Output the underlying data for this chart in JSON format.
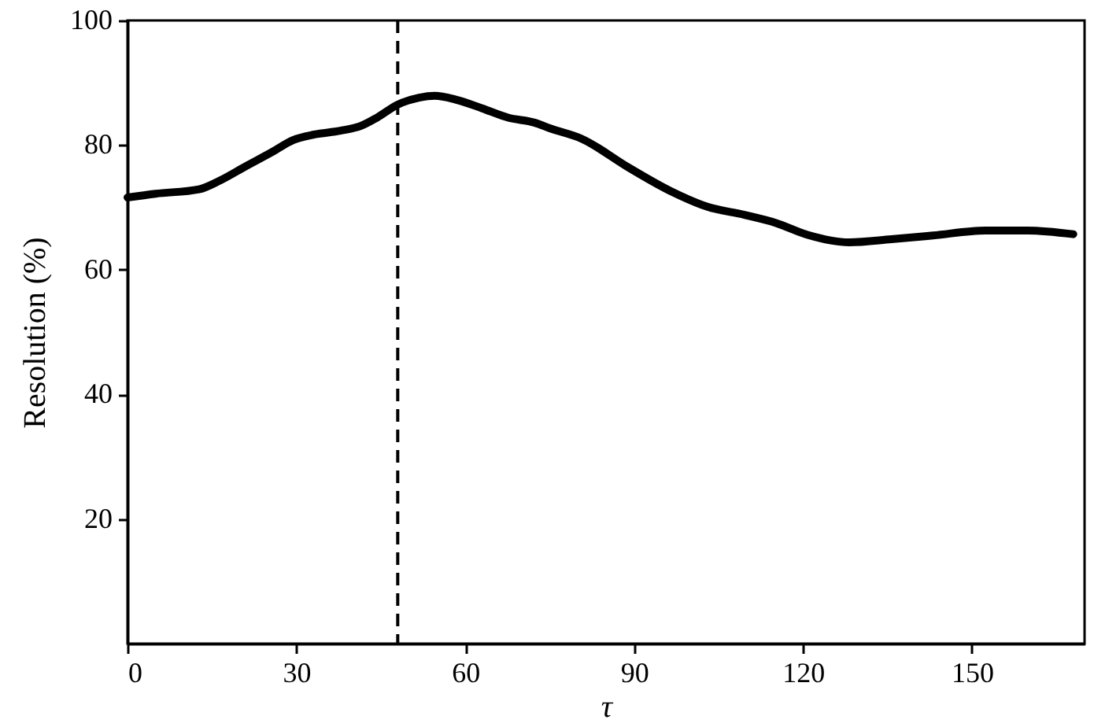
{
  "chart_data": {
    "type": "line",
    "xlabel": "τ",
    "ylabel": "Resolution (%)",
    "x": [
      0,
      5,
      12.7,
      16.4,
      21,
      25.7,
      29.4,
      33.2,
      37.8,
      41.5,
      44.3,
      48,
      51.8,
      54.6,
      58.3,
      63,
      67.6,
      72.3,
      75,
      80.7,
      89,
      96.5,
      103,
      109.6,
      115.2,
      120.8,
      128.2,
      135.7,
      143.1,
      152.4,
      159.9,
      168
    ],
    "series": [
      {
        "color": "#000000",
        "values": [
          71.6,
          72.2,
          72.9,
          74.3,
          76.6,
          78.9,
          80.8,
          81.7,
          82.3,
          83.1,
          84.4,
          86.5,
          87.6,
          87.9,
          87.3,
          85.9,
          84.4,
          83.6,
          82.7,
          81.0,
          76.4,
          72.6,
          70.1,
          68.8,
          67.5,
          65.6,
          64.4,
          64.9,
          65.5,
          66.3,
          66.3,
          65.7
        ]
      }
    ],
    "xlim": [
      0,
      170
    ],
    "ylim": [
      0,
      100
    ],
    "xticks": [
      0,
      30,
      60,
      90,
      120,
      150
    ],
    "yticks": [
      20,
      40,
      60,
      80,
      100
    ],
    "ref_lines": [
      {
        "axis": "x",
        "value": 48,
        "color": "#000000",
        "line_style": "dashed"
      }
    ],
    "line_style": "solid",
    "marker": "none"
  }
}
